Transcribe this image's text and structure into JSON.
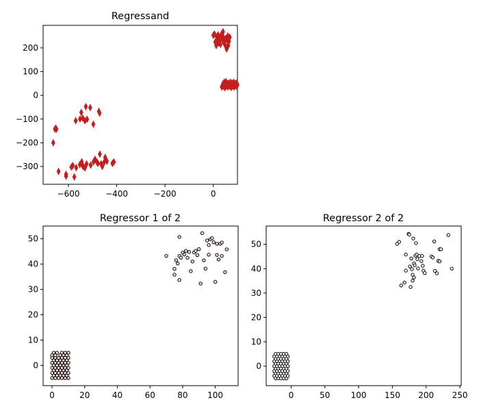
{
  "chart_data": [
    {
      "type": "scatter",
      "title": "Regressand",
      "xlabel": "",
      "ylabel": "",
      "xlim": [
        -705,
        100
      ],
      "ylim": [
        -375,
        295
      ],
      "xticks": [
        -600,
        -400,
        -200,
        0
      ],
      "yticks": [
        -300,
        -200,
        -100,
        0,
        100,
        200
      ],
      "grid": false,
      "marker": "thin-diamond",
      "color": "#c41e1e",
      "points": [
        [
          -656,
          -142
        ],
        [
          -652,
          -139
        ],
        [
          -650,
          -143
        ],
        [
          -663,
          -200
        ],
        [
          -641,
          -321
        ],
        [
          -610,
          -333
        ],
        [
          -610,
          -341
        ],
        [
          -588,
          -302
        ],
        [
          -582,
          -296
        ],
        [
          -576,
          -344
        ],
        [
          -568,
          -305
        ],
        [
          -553,
          -292
        ],
        [
          -545,
          -280
        ],
        [
          -542,
          -296
        ],
        [
          -538,
          -301
        ],
        [
          -532,
          -306
        ],
        [
          -525,
          -289
        ],
        [
          -508,
          -294
        ],
        [
          -496,
          -280
        ],
        [
          -490,
          -270
        ],
        [
          -482,
          -282
        ],
        [
          -478,
          -287
        ],
        [
          -470,
          -248
        ],
        [
          -465,
          -289
        ],
        [
          -460,
          -300
        ],
        [
          -452,
          -282
        ],
        [
          -448,
          -262
        ],
        [
          -441,
          -278
        ],
        [
          -418,
          -287
        ],
        [
          -412,
          -281
        ],
        [
          -570,
          -107
        ],
        [
          -552,
          -100
        ],
        [
          -547,
          -72
        ],
        [
          -541,
          -96
        ],
        [
          -532,
          -107
        ],
        [
          -528,
          -48
        ],
        [
          -523,
          -101
        ],
        [
          -510,
          -52
        ],
        [
          -497,
          -122
        ],
        [
          -474,
          -68
        ],
        [
          -471,
          -75
        ],
        [
          0,
          253
        ],
        [
          5,
          258
        ],
        [
          8,
          225
        ],
        [
          12,
          210
        ],
        [
          15,
          247
        ],
        [
          17,
          238
        ],
        [
          20,
          255
        ],
        [
          22,
          220
        ],
        [
          25,
          230
        ],
        [
          28,
          240
        ],
        [
          30,
          215
        ],
        [
          32,
          250
        ],
        [
          35,
          260
        ],
        [
          38,
          235
        ],
        [
          40,
          268
        ],
        [
          42,
          245
        ],
        [
          45,
          220
        ],
        [
          48,
          230
        ],
        [
          50,
          210
        ],
        [
          52,
          240
        ],
        [
          55,
          195
        ],
        [
          58,
          232
        ],
        [
          60,
          250
        ],
        [
          62,
          210
        ],
        [
          65,
          228
        ],
        [
          68,
          245
        ],
        [
          35,
          35
        ],
        [
          38,
          42
        ],
        [
          40,
          48
        ],
        [
          42,
          38
        ],
        [
          45,
          55
        ],
        [
          48,
          32
        ],
        [
          50,
          45
        ],
        [
          52,
          58
        ],
        [
          55,
          40
        ],
        [
          58,
          50
        ],
        [
          60,
          35
        ],
        [
          62,
          48
        ],
        [
          65,
          52
        ],
        [
          68,
          38
        ],
        [
          70,
          45
        ],
        [
          72,
          55
        ],
        [
          74,
          33
        ],
        [
          76,
          42
        ],
        [
          78,
          50
        ],
        [
          80,
          38
        ],
        [
          82,
          45
        ],
        [
          84,
          55
        ],
        [
          86,
          35
        ],
        [
          88,
          48
        ],
        [
          90,
          40
        ],
        [
          92,
          52
        ],
        [
          94,
          45
        ],
        [
          96,
          38
        ],
        [
          98,
          50
        ],
        [
          100,
          44
        ]
      ]
    },
    {
      "type": "scatter",
      "title": "Regressor 1 of 2",
      "xlabel": "",
      "ylabel": "",
      "xlim": [
        -5.5,
        114
      ],
      "ylim": [
        -8,
        55
      ],
      "xticks": [
        0,
        20,
        40,
        60,
        80,
        100
      ],
      "yticks": [
        0,
        10,
        20,
        30,
        40,
        50
      ],
      "grid": false,
      "marker": "circle",
      "facecolor": "#fbe0e0",
      "edgecolor": "#000000",
      "points": [
        [
          0,
          -5
        ],
        [
          0,
          -3
        ],
        [
          0,
          -1
        ],
        [
          0,
          1
        ],
        [
          0,
          3
        ],
        [
          0,
          4
        ],
        [
          1,
          -4
        ],
        [
          1,
          -2
        ],
        [
          1,
          0
        ],
        [
          1,
          2
        ],
        [
          1,
          5
        ],
        [
          2,
          -5
        ],
        [
          2,
          -3
        ],
        [
          2,
          -1
        ],
        [
          2,
          1
        ],
        [
          2,
          3
        ],
        [
          2,
          4
        ],
        [
          3,
          -4
        ],
        [
          3,
          -2
        ],
        [
          3,
          0
        ],
        [
          3,
          2
        ],
        [
          3,
          5
        ],
        [
          4,
          -5
        ],
        [
          4,
          -3
        ],
        [
          4,
          -1
        ],
        [
          4,
          1
        ],
        [
          4,
          3
        ],
        [
          5,
          -4
        ],
        [
          5,
          -2
        ],
        [
          5,
          0
        ],
        [
          5,
          2
        ],
        [
          5,
          4
        ],
        [
          6,
          -5
        ],
        [
          6,
          -3
        ],
        [
          6,
          -1
        ],
        [
          6,
          1
        ],
        [
          6,
          3
        ],
        [
          6,
          5
        ],
        [
          7,
          -4
        ],
        [
          7,
          -2
        ],
        [
          7,
          0
        ],
        [
          7,
          2
        ],
        [
          7,
          4
        ],
        [
          8,
          -5
        ],
        [
          8,
          -3
        ],
        [
          8,
          -1
        ],
        [
          8,
          1
        ],
        [
          8,
          3
        ],
        [
          8,
          5
        ],
        [
          9,
          -4
        ],
        [
          9,
          -2
        ],
        [
          9,
          0
        ],
        [
          9,
          2
        ],
        [
          9,
          4
        ],
        [
          10,
          -5
        ],
        [
          10,
          -3
        ],
        [
          10,
          -1
        ],
        [
          10,
          1
        ],
        [
          10,
          3
        ],
        [
          10,
          5
        ],
        [
          70,
          43.2
        ],
        [
          75,
          35.8
        ],
        [
          75,
          38.1
        ],
        [
          76,
          41.5
        ],
        [
          77,
          40.2
        ],
        [
          78,
          43.2
        ],
        [
          78,
          50.7
        ],
        [
          78,
          33.7
        ],
        [
          79,
          42.5
        ],
        [
          80,
          44.5
        ],
        [
          81,
          43.8
        ],
        [
          82,
          45.2
        ],
        [
          83,
          42.5
        ],
        [
          84,
          44.8
        ],
        [
          85,
          37.2
        ],
        [
          86,
          41.0
        ],
        [
          87,
          44.6
        ],
        [
          88,
          45.2
        ],
        [
          89,
          43.5
        ],
        [
          90,
          45.9
        ],
        [
          91,
          32.3
        ],
        [
          92,
          52.2
        ],
        [
          93,
          41.5
        ],
        [
          94,
          38.2
        ],
        [
          95,
          49.3
        ],
        [
          96,
          43.7
        ],
        [
          97,
          49.8
        ],
        [
          98,
          50.2
        ],
        [
          99,
          48.6
        ],
        [
          100,
          33.0
        ],
        [
          101,
          43.6
        ],
        [
          101,
          48.0
        ],
        [
          102,
          41.8
        ],
        [
          103,
          48.0
        ],
        [
          104,
          48.5
        ],
        [
          104,
          43.2
        ],
        [
          106,
          36.8
        ],
        [
          107,
          45.8
        ],
        [
          96,
          47.5
        ]
      ]
    },
    {
      "type": "scatter",
      "title": "Regressor 2 of 2",
      "xlabel": "",
      "ylabel": "",
      "xlim": [
        -37,
        252
      ],
      "ylim": [
        -8,
        57.5
      ],
      "xticks": [
        0,
        50,
        100,
        150,
        200,
        250
      ],
      "yticks": [
        0,
        10,
        20,
        30,
        40,
        50
      ],
      "grid": false,
      "marker": "circle",
      "facecolor": "#ffffff",
      "edgecolor": "#000000",
      "points": [
        [
          -25,
          -4
        ],
        [
          -25,
          -2
        ],
        [
          -25,
          0
        ],
        [
          -25,
          2
        ],
        [
          -25,
          4
        ],
        [
          -23,
          -5
        ],
        [
          -23,
          -3
        ],
        [
          -23,
          -1
        ],
        [
          -23,
          1
        ],
        [
          -23,
          3
        ],
        [
          -23,
          5
        ],
        [
          -21,
          -4
        ],
        [
          -21,
          -2
        ],
        [
          -21,
          0
        ],
        [
          -21,
          2
        ],
        [
          -21,
          4
        ],
        [
          -19,
          -5
        ],
        [
          -19,
          -3
        ],
        [
          -19,
          -1
        ],
        [
          -19,
          1
        ],
        [
          -19,
          3
        ],
        [
          -19,
          5
        ],
        [
          -17,
          -4
        ],
        [
          -17,
          -2
        ],
        [
          -17,
          0
        ],
        [
          -17,
          2
        ],
        [
          -17,
          4
        ],
        [
          -15,
          -5
        ],
        [
          -15,
          -3
        ],
        [
          -15,
          -1
        ],
        [
          -15,
          1
        ],
        [
          -15,
          3
        ],
        [
          -15,
          5
        ],
        [
          -13,
          -4
        ],
        [
          -13,
          -2
        ],
        [
          -13,
          0
        ],
        [
          -13,
          2
        ],
        [
          -13,
          4
        ],
        [
          -11,
          -5
        ],
        [
          -11,
          -3
        ],
        [
          -11,
          -1
        ],
        [
          -11,
          1
        ],
        [
          -11,
          3
        ],
        [
          -11,
          5
        ],
        [
          -9,
          -4
        ],
        [
          -9,
          -2
        ],
        [
          -9,
          0
        ],
        [
          -9,
          2
        ],
        [
          -9,
          4
        ],
        [
          -7,
          -5
        ],
        [
          -7,
          -3
        ],
        [
          -7,
          -1
        ],
        [
          -7,
          1
        ],
        [
          -7,
          3
        ],
        [
          -7,
          5
        ],
        [
          -5,
          -4
        ],
        [
          -5,
          -2
        ],
        [
          -5,
          0
        ],
        [
          -5,
          2
        ],
        [
          -5,
          4
        ],
        [
          157,
          50.2
        ],
        [
          160,
          51.0
        ],
        [
          163,
          33.1
        ],
        [
          168,
          34.3
        ],
        [
          170,
          45.8
        ],
        [
          170,
          39.2
        ],
        [
          174,
          54.3
        ],
        [
          175,
          54.0
        ],
        [
          176,
          40.9
        ],
        [
          177,
          32.5
        ],
        [
          178,
          44.2
        ],
        [
          179,
          39.8
        ],
        [
          180,
          35.1
        ],
        [
          180,
          37.5
        ],
        [
          181,
          52.4
        ],
        [
          182,
          36.4
        ],
        [
          182,
          42.2
        ],
        [
          183,
          41.4
        ],
        [
          184,
          45.3
        ],
        [
          185,
          50.5
        ],
        [
          186,
          45.8
        ],
        [
          187,
          43.9
        ],
        [
          188,
          40.1
        ],
        [
          190,
          45.2
        ],
        [
          193,
          43.1
        ],
        [
          194,
          45.2
        ],
        [
          195,
          41.2
        ],
        [
          196,
          39.2
        ],
        [
          198,
          38.2
        ],
        [
          208,
          45.0
        ],
        [
          210,
          44.6
        ],
        [
          212,
          51.2
        ],
        [
          213,
          39.1
        ],
        [
          216,
          38.1
        ],
        [
          218,
          43.2
        ],
        [
          220,
          43.0
        ],
        [
          220,
          48.0
        ],
        [
          222,
          48.0
        ],
        [
          233,
          53.8
        ],
        [
          238,
          40.0
        ]
      ]
    }
  ]
}
